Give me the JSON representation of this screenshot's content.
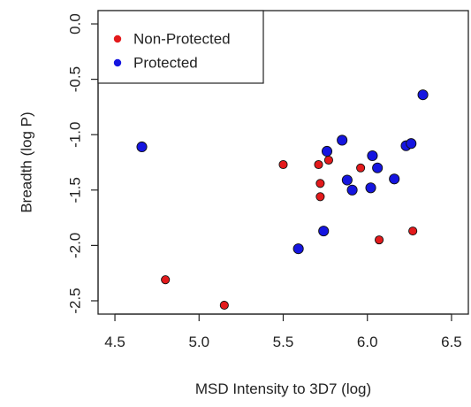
{
  "chart_data": {
    "type": "scatter",
    "xlabel": "MSD Intensity to 3D7 (log)",
    "ylabel": "Breadth (log P)",
    "xlim": [
      4.4,
      6.6
    ],
    "ylim": [
      -2.62,
      0.12
    ],
    "x_ticks": [
      "4.5",
      "5.0",
      "5.5",
      "6.0",
      "6.5"
    ],
    "y_ticks": [
      "0.0",
      "-0.5",
      "-1.0",
      "-1.5",
      "-2.0",
      "-2.5"
    ],
    "legend_position": "top-left",
    "grid": false,
    "series": [
      {
        "name": "Non-Protected",
        "color": "#e31a1c",
        "points": [
          {
            "x": 4.8,
            "y": -2.31
          },
          {
            "x": 5.15,
            "y": -2.54
          },
          {
            "x": 5.5,
            "y": -1.27
          },
          {
            "x": 5.71,
            "y": -1.27
          },
          {
            "x": 5.72,
            "y": -1.44
          },
          {
            "x": 5.72,
            "y": -1.56
          },
          {
            "x": 5.77,
            "y": -1.23
          },
          {
            "x": 5.96,
            "y": -1.3
          },
          {
            "x": 6.07,
            "y": -1.95
          },
          {
            "x": 6.27,
            "y": -1.87
          }
        ]
      },
      {
        "name": "Protected",
        "color": "#1515e0",
        "points": [
          {
            "x": 4.66,
            "y": -1.11
          },
          {
            "x": 5.59,
            "y": -2.03
          },
          {
            "x": 5.74,
            "y": -1.87
          },
          {
            "x": 5.76,
            "y": -1.15
          },
          {
            "x": 5.85,
            "y": -1.05
          },
          {
            "x": 5.88,
            "y": -1.41
          },
          {
            "x": 5.91,
            "y": -1.5
          },
          {
            "x": 6.02,
            "y": -1.48
          },
          {
            "x": 6.03,
            "y": -1.19
          },
          {
            "x": 6.06,
            "y": -1.3
          },
          {
            "x": 6.16,
            "y": -1.4
          },
          {
            "x": 6.23,
            "y": -1.1
          },
          {
            "x": 6.26,
            "y": -1.08
          },
          {
            "x": 6.33,
            "y": -0.64
          }
        ]
      }
    ]
  }
}
